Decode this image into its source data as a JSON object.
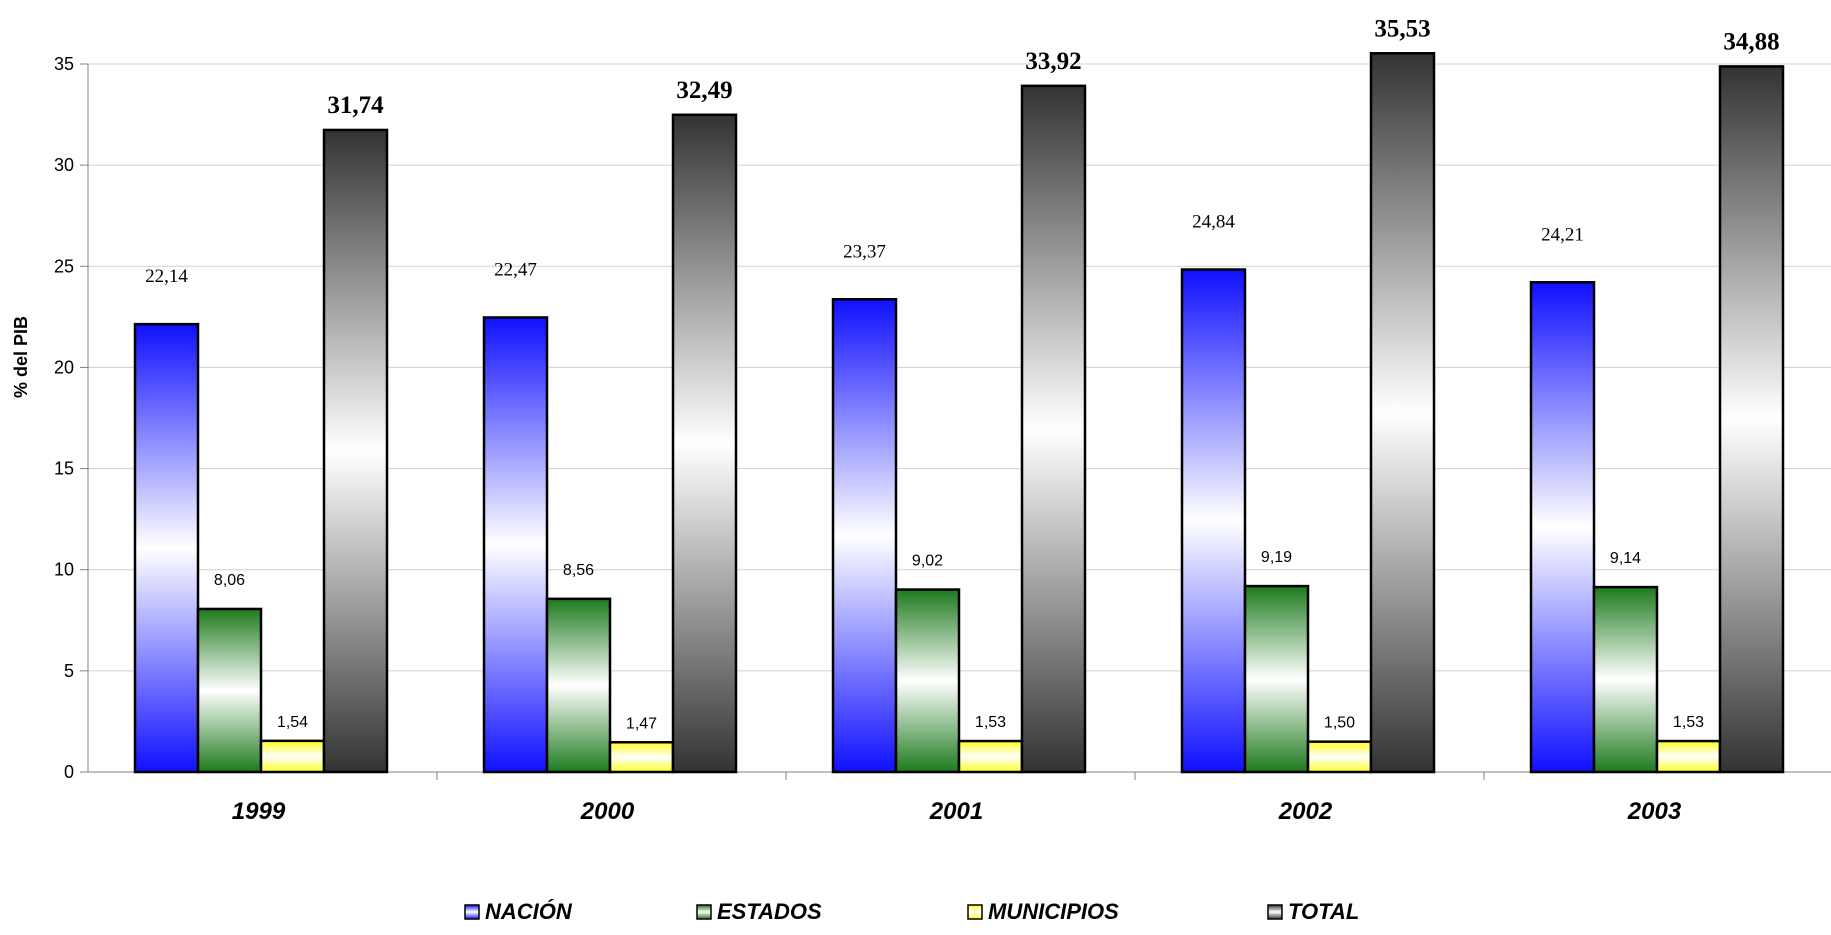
{
  "chart_data": {
    "type": "bar",
    "title": "",
    "xlabel": "",
    "ylabel": "% del PIB",
    "ylim": [
      0,
      35
    ],
    "yticks": [
      "0",
      "5",
      "10",
      "15",
      "20",
      "25",
      "30",
      "35"
    ],
    "grid": true,
    "legend_position": "bottom",
    "categories": [
      "1999",
      "2000",
      "2001",
      "2002",
      "2003"
    ],
    "series": [
      {
        "name": "NACIÓN",
        "values": [
          22.14,
          22.47,
          23.37,
          24.84,
          24.21
        ],
        "labels": [
          "22,14",
          "22,47",
          "23,37",
          "24,84",
          "24,21"
        ],
        "color": "#1414ff"
      },
      {
        "name": "ESTADOS",
        "values": [
          8.06,
          8.56,
          9.02,
          9.19,
          9.14
        ],
        "labels": [
          "8,06",
          "8,56",
          "9,02",
          "9,19",
          "9,14"
        ],
        "color": "#1e7a1e"
      },
      {
        "name": "MUNICIPIOS",
        "values": [
          1.54,
          1.47,
          1.53,
          1.5,
          1.53
        ],
        "labels": [
          "1,54",
          "1,47",
          "1,53",
          "1,50",
          "1,53"
        ],
        "color": "#ffff33"
      },
      {
        "name": "TOTAL",
        "values": [
          31.74,
          32.49,
          33.92,
          35.53,
          34.88
        ],
        "labels": [
          "31,74",
          "32,49",
          "33,92",
          "35,53",
          "34,88"
        ],
        "color": "#3a3a3a"
      }
    ]
  }
}
